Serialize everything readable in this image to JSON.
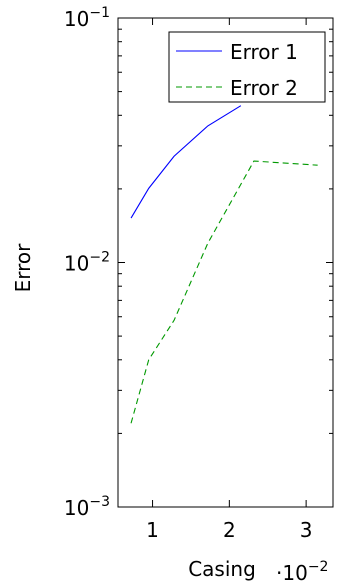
{
  "chart_data": {
    "type": "line",
    "title": "",
    "xlabel": "Casing",
    "ylabel": "Error",
    "x_multiplier_label": {
      "base": "·10",
      "exp": "−2"
    },
    "x_scale": "linear",
    "y_scale": "log",
    "xlim": [
      0.0055,
      0.0335
    ],
    "ylim": [
      0.001,
      0.1
    ],
    "x_ticks": [
      {
        "value": 0.01,
        "label": "1"
      },
      {
        "value": 0.02,
        "label": "2"
      },
      {
        "value": 0.03,
        "label": "3"
      }
    ],
    "y_ticks": [
      {
        "value": 0.001,
        "base": "10",
        "exp": "−3"
      },
      {
        "value": 0.01,
        "base": "10",
        "exp": "−2"
      },
      {
        "value": 0.1,
        "base": "10",
        "exp": "−1"
      }
    ],
    "grid": false,
    "legend_position": "top-right",
    "series": [
      {
        "name": "Error 1",
        "color": "#0000ff",
        "dash": "solid",
        "x": [
          0.0072,
          0.0095,
          0.0128,
          0.0172,
          0.0215
        ],
        "y": [
          0.0152,
          0.0201,
          0.0272,
          0.0362,
          0.0438
        ]
      },
      {
        "name": "Error 2",
        "color": "#009900",
        "dash": "dashed",
        "x": [
          0.0072,
          0.0095,
          0.0128,
          0.0172,
          0.0232,
          0.0315
        ],
        "y": [
          0.0022,
          0.004,
          0.0058,
          0.012,
          0.026,
          0.025
        ]
      }
    ]
  }
}
